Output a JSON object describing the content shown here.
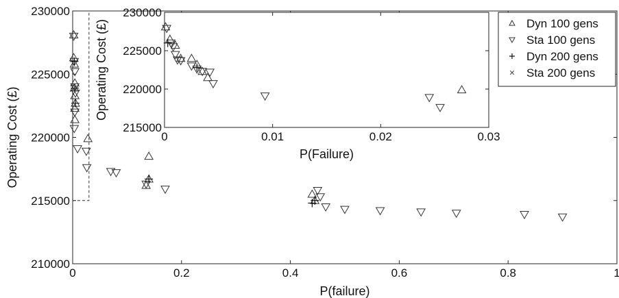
{
  "chart_data": [
    {
      "type": "scatter",
      "xlabel": "P(failure)",
      "ylabel": "Operating Cost (£)",
      "xlim": [
        0,
        1
      ],
      "ylim": [
        210000,
        230000
      ],
      "x_ticks": [
        {
          "value": 0,
          "label": "0"
        },
        {
          "value": 0.2,
          "label": "0.2"
        },
        {
          "value": 0.4,
          "label": "0.4"
        },
        {
          "value": 0.6,
          "label": "0.6"
        },
        {
          "value": 0.8,
          "label": "0.8"
        },
        {
          "value": 1,
          "label": "1"
        }
      ],
      "y_ticks": [
        {
          "value": 210000,
          "label": "210000"
        },
        {
          "value": 215000,
          "label": "215000"
        },
        {
          "value": 220000,
          "label": "220000"
        },
        {
          "value": 225000,
          "label": "225000"
        },
        {
          "value": 230000,
          "label": "230000"
        }
      ],
      "grid": false,
      "legend": "top-right",
      "zoom_region": {
        "x": [
          0,
          0.03
        ],
        "y": [
          215000,
          230000
        ]
      },
      "series": [
        {
          "name": "Dyn 100 gens",
          "marker": "triangle-up",
          "points": [
            [
              0.002,
              228100
            ],
            [
              0.002,
              226300
            ],
            [
              0.003,
              225800
            ],
            [
              0.004,
              224300
            ],
            [
              0.003,
              223900
            ],
            [
              0.004,
              223300
            ],
            [
              0.005,
              222700
            ],
            [
              0.004,
              222300
            ],
            [
              0.004,
              221400
            ],
            [
              0.028,
              219900
            ],
            [
              0.14,
              218500
            ],
            [
              0.14,
              216700
            ],
            [
              0.135,
              216200
            ],
            [
              0.44,
              215500
            ],
            [
              0.445,
              215000
            ]
          ]
        },
        {
          "name": "Sta 100 gens",
          "marker": "triangle-down",
          "points": [
            [
              0.002,
              228000
            ],
            [
              0.003,
              226000
            ],
            [
              0.004,
              225200
            ],
            [
              0.004,
              224000
            ],
            [
              0.005,
              223500
            ],
            [
              0.004,
              222000
            ],
            [
              0.003,
              220700
            ],
            [
              0.009,
              219100
            ],
            [
              0.025,
              218900
            ],
            [
              0.026,
              217600
            ],
            [
              0.07,
              217300
            ],
            [
              0.08,
              217200
            ],
            [
              0.135,
              216300
            ],
            [
              0.17,
              215900
            ],
            [
              0.45,
              215800
            ],
            [
              0.455,
              215300
            ],
            [
              0.465,
              214500
            ],
            [
              0.5,
              214300
            ],
            [
              0.565,
              214200
            ],
            [
              0.64,
              214100
            ],
            [
              0.705,
              214000
            ],
            [
              0.83,
              213900
            ],
            [
              0.9,
              213700
            ]
          ]
        },
        {
          "name": "Dyn 200 gens",
          "marker": "plus",
          "points": [
            [
              0.003,
              226000
            ],
            [
              0.004,
              223900
            ],
            [
              0.005,
              222700
            ],
            [
              0.14,
              216700
            ],
            [
              0.44,
              214800
            ],
            [
              0.445,
              215000
            ]
          ]
        },
        {
          "name": "Sta 200 gens",
          "marker": "x",
          "points": []
        }
      ]
    },
    {
      "type": "scatter",
      "xlabel": "P(Failure)",
      "ylabel": "Operating Cost (£)",
      "xlim": [
        0,
        0.03
      ],
      "ylim": [
        215000,
        230000
      ],
      "x_ticks": [
        {
          "value": 0,
          "label": "0"
        },
        {
          "value": 0.01,
          "label": "0.01"
        },
        {
          "value": 0.02,
          "label": "0.02"
        },
        {
          "value": 0.03,
          "label": "0.03"
        }
      ],
      "y_ticks": [
        {
          "value": 215000,
          "label": "215000"
        },
        {
          "value": 220000,
          "label": "220000"
        },
        {
          "value": 225000,
          "label": "225000"
        },
        {
          "value": 230000,
          "label": "230000"
        }
      ],
      "grid": false,
      "series": [
        {
          "name": "Dyn 100 gens",
          "marker": "triangle-up",
          "points": [
            [
              0.0001,
              228100
            ],
            [
              0.0005,
              226500
            ],
            [
              0.001,
              225700
            ],
            [
              0.0015,
              224000
            ],
            [
              0.0025,
              224000
            ],
            [
              0.003,
              223200
            ],
            [
              0.0035,
              222300
            ],
            [
              0.004,
              221500
            ],
            [
              0.0275,
              219900
            ]
          ]
        },
        {
          "name": "Sta 100 gens",
          "marker": "triangle-down",
          "points": [
            [
              0.0002,
              227900
            ],
            [
              0.0006,
              226000
            ],
            [
              0.0008,
              225500
            ],
            [
              0.001,
              224500
            ],
            [
              0.0012,
              223800
            ],
            [
              0.0015,
              223700
            ],
            [
              0.0025,
              223000
            ],
            [
              0.003,
              222600
            ],
            [
              0.0035,
              222300
            ],
            [
              0.0042,
              222200
            ],
            [
              0.0045,
              220700
            ],
            [
              0.0093,
              219100
            ],
            [
              0.0245,
              218900
            ],
            [
              0.0255,
              217600
            ]
          ]
        },
        {
          "name": "Dyn 200 gens",
          "marker": "plus",
          "points": [
            [
              0.0003,
              226000
            ],
            [
              0.003,
              222800
            ]
          ]
        },
        {
          "name": "Sta 200 gens",
          "marker": "x",
          "points": []
        }
      ]
    }
  ]
}
